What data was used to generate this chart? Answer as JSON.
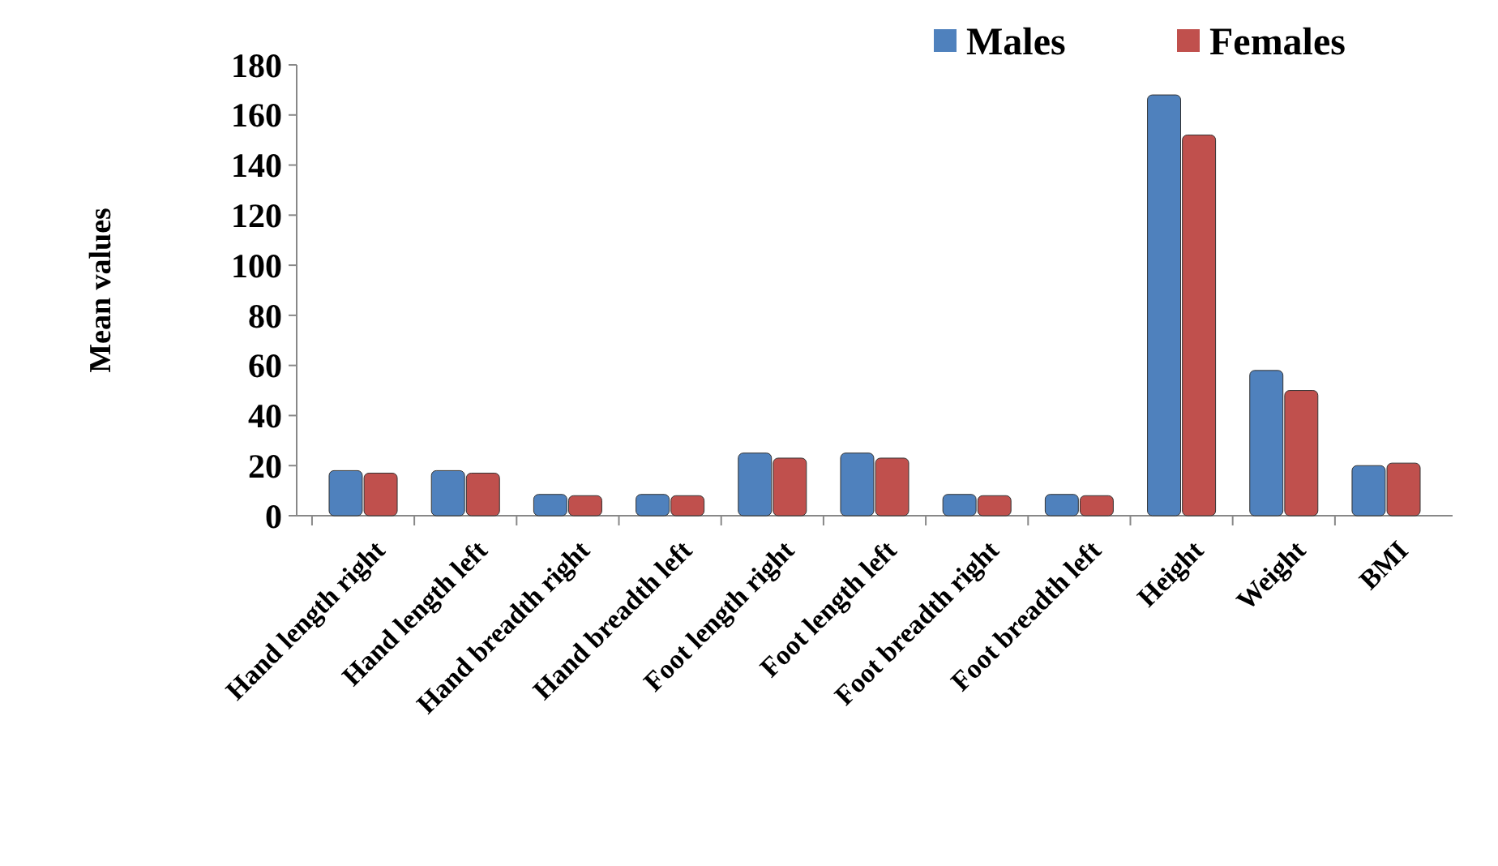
{
  "chart_data": {
    "type": "bar",
    "ylabel": "Mean values",
    "categories": [
      "Hand length right",
      "Hand length left",
      "Hand breadth right",
      "Hand breadth left",
      "Foot length right",
      "Foot length left",
      "Foot breadth right",
      "Foot breadth left",
      "Height",
      "Weight",
      "BMI"
    ],
    "series": [
      {
        "name": "Males",
        "color": "#4f81bd",
        "values": [
          18,
          18,
          8.5,
          8.5,
          25,
          25,
          8.5,
          8.5,
          168,
          58,
          20
        ]
      },
      {
        "name": "Females",
        "color": "#c0504d",
        "values": [
          17,
          17,
          8,
          8,
          23,
          23,
          8,
          8,
          152,
          50,
          21
        ]
      }
    ],
    "ylim": [
      0,
      180
    ],
    "yticks": [
      0,
      20,
      40,
      60,
      80,
      100,
      120,
      140,
      160,
      180
    ],
    "legend": "top right"
  }
}
